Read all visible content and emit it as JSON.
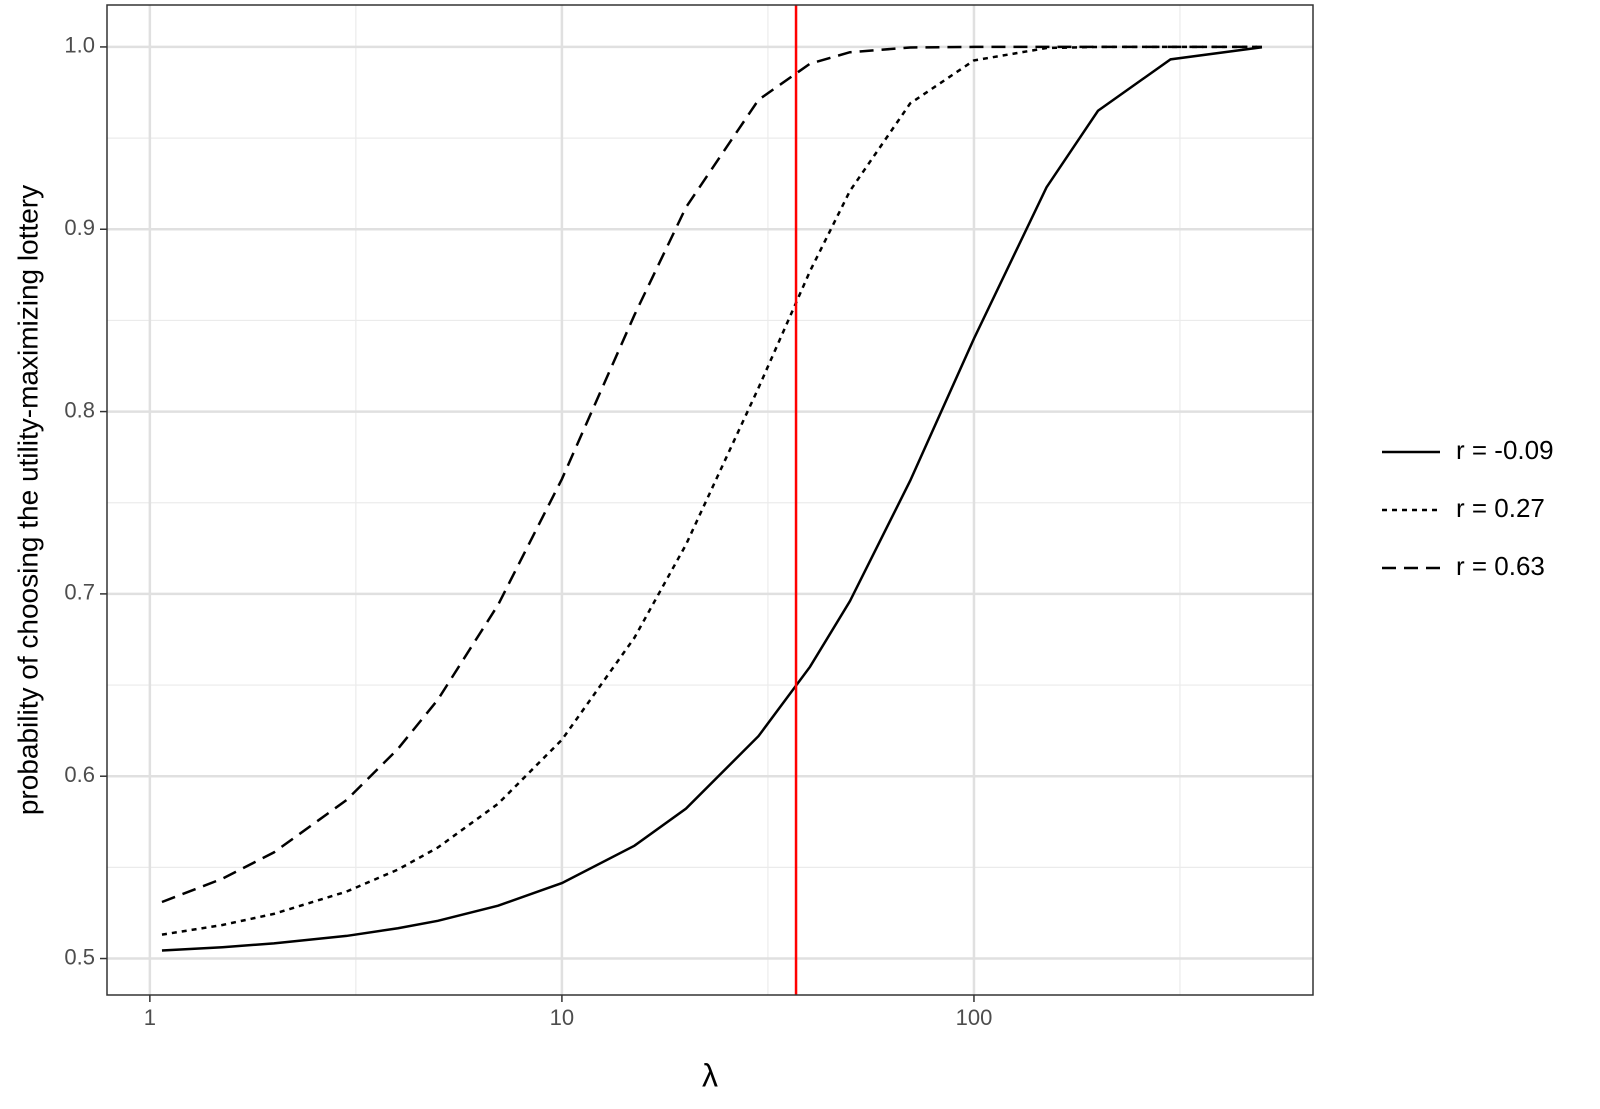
{
  "chart_data": {
    "type": "line",
    "x_label": "λ",
    "y_label": "probability of choosing the utility-maximizing lottery",
    "x_scale": "log",
    "x": [
      1.07,
      1.5,
      2,
      3,
      4,
      5,
      7,
      10,
      15,
      20,
      30,
      40,
      50,
      70,
      100,
      150,
      200,
      300,
      500
    ],
    "series": [
      {
        "name": "r = -0.09",
        "color": "#000000",
        "linestyle": "solid",
        "values": [
          0.5044,
          0.5062,
          0.5083,
          0.5124,
          0.5166,
          0.5207,
          0.529,
          0.5414,
          0.5619,
          0.5822,
          0.622,
          0.66,
          0.696,
          0.762,
          0.84,
          0.923,
          0.965,
          0.9932,
          0.9998
        ]
      },
      {
        "name": "r = 0.27",
        "color": "#000000",
        "linestyle": "dotted",
        "values": [
          0.5131,
          0.5184,
          0.5245,
          0.5367,
          0.5488,
          0.5609,
          0.5849,
          0.62,
          0.676,
          0.727,
          0.813,
          0.877,
          0.921,
          0.969,
          0.9926,
          0.9994,
          1.0,
          1.0,
          1.0
        ]
      },
      {
        "name": "r = 0.63",
        "color": "#000000",
        "linestyle": "dashed",
        "values": [
          0.531,
          0.5438,
          0.5582,
          0.5869,
          0.615,
          0.642,
          0.694,
          0.763,
          0.853,
          0.912,
          0.971,
          0.9908,
          0.9971,
          0.9997,
          1.0,
          1.0,
          1.0,
          1.0,
          1.0
        ]
      }
    ],
    "vline": {
      "value": 37,
      "color": "#ff0000"
    },
    "xlim": [
      0.787,
      665
    ],
    "ylim": [
      0.48,
      1.023
    ],
    "xticks": [
      1,
      10,
      100
    ],
    "xminor": [
      3.162,
      31.62,
      316.2
    ],
    "yticks": [
      0.5,
      0.6,
      0.7,
      0.8,
      0.9,
      {
        "value": 1,
        "label": "1.0"
      }
    ],
    "yminor": [
      0.55,
      0.65,
      0.75,
      0.85,
      0.95
    ],
    "grid": true,
    "legend": "right"
  }
}
